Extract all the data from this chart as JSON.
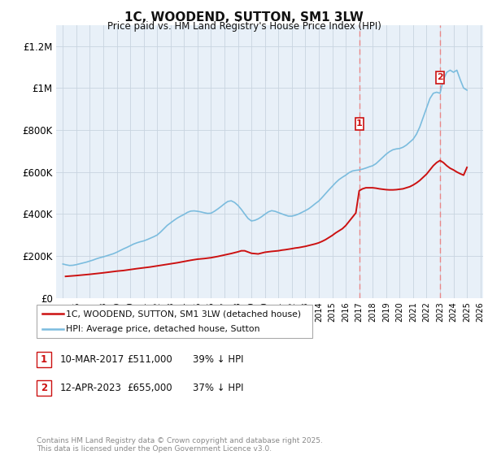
{
  "title": "1C, WOODEND, SUTTON, SM1 3LW",
  "subtitle": "Price paid vs. HM Land Registry's House Price Index (HPI)",
  "legend_line1": "1C, WOODEND, SUTTON, SM1 3LW (detached house)",
  "legend_line2": "HPI: Average price, detached house, Sutton",
  "annotation1": {
    "num": "1",
    "date": "10-MAR-2017",
    "price": "£511,000",
    "pct": "39% ↓ HPI"
  },
  "annotation2": {
    "num": "2",
    "date": "12-APR-2023",
    "price": "£655,000",
    "pct": "37% ↓ HPI"
  },
  "footer": "Contains HM Land Registry data © Crown copyright and database right 2025.\nThis data is licensed under the Open Government Licence v3.0.",
  "hpi_x": [
    1995.0,
    1995.25,
    1995.5,
    1995.75,
    1996.0,
    1996.25,
    1996.5,
    1996.75,
    1997.0,
    1997.25,
    1997.5,
    1997.75,
    1998.0,
    1998.25,
    1998.5,
    1998.75,
    1999.0,
    1999.25,
    1999.5,
    1999.75,
    2000.0,
    2000.25,
    2000.5,
    2000.75,
    2001.0,
    2001.25,
    2001.5,
    2001.75,
    2002.0,
    2002.25,
    2002.5,
    2002.75,
    2003.0,
    2003.25,
    2003.5,
    2003.75,
    2004.0,
    2004.25,
    2004.5,
    2004.75,
    2005.0,
    2005.25,
    2005.5,
    2005.75,
    2006.0,
    2006.25,
    2006.5,
    2006.75,
    2007.0,
    2007.25,
    2007.5,
    2007.75,
    2008.0,
    2008.25,
    2008.5,
    2008.75,
    2009.0,
    2009.25,
    2009.5,
    2009.75,
    2010.0,
    2010.25,
    2010.5,
    2010.75,
    2011.0,
    2011.25,
    2011.5,
    2011.75,
    2012.0,
    2012.25,
    2012.5,
    2012.75,
    2013.0,
    2013.25,
    2013.5,
    2013.75,
    2014.0,
    2014.25,
    2014.5,
    2014.75,
    2015.0,
    2015.25,
    2015.5,
    2015.75,
    2016.0,
    2016.25,
    2016.5,
    2016.75,
    2017.0,
    2017.25,
    2017.5,
    2017.75,
    2018.0,
    2018.25,
    2018.5,
    2018.75,
    2019.0,
    2019.25,
    2019.5,
    2019.75,
    2020.0,
    2020.25,
    2020.5,
    2020.75,
    2021.0,
    2021.25,
    2021.5,
    2021.75,
    2022.0,
    2022.25,
    2022.5,
    2022.75,
    2023.0,
    2023.25,
    2023.5,
    2023.75,
    2024.0,
    2024.25,
    2024.5,
    2024.75,
    2025.0
  ],
  "hpi_y": [
    162000,
    158000,
    155000,
    156000,
    159000,
    163000,
    167000,
    171000,
    176000,
    181000,
    187000,
    192000,
    196000,
    201000,
    206000,
    211000,
    218000,
    226000,
    234000,
    241000,
    249000,
    257000,
    263000,
    268000,
    272000,
    278000,
    285000,
    292000,
    300000,
    314000,
    330000,
    346000,
    358000,
    370000,
    381000,
    390000,
    398000,
    408000,
    414000,
    415000,
    413000,
    410000,
    406000,
    403000,
    404000,
    413000,
    424000,
    436000,
    449000,
    460000,
    463000,
    455000,
    441000,
    422000,
    400000,
    379000,
    367000,
    370000,
    377000,
    387000,
    399000,
    410000,
    416000,
    413000,
    407000,
    401000,
    395000,
    390000,
    390000,
    394000,
    400000,
    408000,
    416000,
    425000,
    437000,
    450000,
    462000,
    479000,
    497000,
    515000,
    532000,
    549000,
    564000,
    575000,
    585000,
    597000,
    605000,
    608000,
    610000,
    614000,
    619000,
    625000,
    630000,
    640000,
    655000,
    670000,
    685000,
    697000,
    706000,
    710000,
    712000,
    718000,
    728000,
    742000,
    756000,
    780000,
    815000,
    860000,
    905000,
    950000,
    975000,
    980000,
    975000,
    1040000,
    1075000,
    1085000,
    1075000,
    1085000,
    1040000,
    1000000,
    990000
  ],
  "prop_x": [
    1995.2,
    1996.0,
    1997.0,
    1998.0,
    1999.0,
    1999.5,
    2000.5,
    2001.5,
    2002.5,
    2003.0,
    2003.5,
    2004.0,
    2004.5,
    2005.0,
    2005.5,
    2006.0,
    2006.5,
    2007.0,
    2007.5,
    2008.0,
    2008.25,
    2008.5,
    2009.0,
    2009.5,
    2010.0,
    2010.5,
    2011.0,
    2011.25,
    2011.5,
    2012.0,
    2012.25,
    2012.5,
    2012.75,
    2013.0,
    2013.25,
    2013.5,
    2013.75,
    2014.0,
    2014.25,
    2014.5,
    2014.75,
    2015.0,
    2015.25,
    2015.5,
    2015.75,
    2016.0,
    2016.25,
    2016.5,
    2016.75,
    2017.0,
    2017.25,
    2017.5,
    2017.75,
    2018.0,
    2018.25,
    2018.5,
    2018.75,
    2019.0,
    2019.25,
    2019.5,
    2019.75,
    2020.0,
    2020.25,
    2020.5,
    2020.75,
    2021.0,
    2021.25,
    2021.5,
    2021.75,
    2022.0,
    2022.25,
    2022.5,
    2022.75,
    2023.0,
    2023.25,
    2023.5,
    2023.75,
    2024.0,
    2024.25,
    2024.5,
    2024.75,
    2025.0
  ],
  "prop_y": [
    103000,
    107000,
    113000,
    120000,
    128000,
    131000,
    140000,
    148000,
    158000,
    163000,
    168000,
    174000,
    180000,
    185000,
    188000,
    192000,
    198000,
    205000,
    212000,
    220000,
    225000,
    225000,
    213000,
    210000,
    218000,
    222000,
    225000,
    228000,
    230000,
    235000,
    238000,
    240000,
    243000,
    246000,
    250000,
    254000,
    258000,
    263000,
    270000,
    278000,
    288000,
    298000,
    310000,
    320000,
    330000,
    345000,
    365000,
    385000,
    405000,
    511000,
    520000,
    525000,
    525000,
    525000,
    523000,
    520000,
    518000,
    516000,
    515000,
    515000,
    516000,
    518000,
    520000,
    525000,
    530000,
    538000,
    548000,
    560000,
    575000,
    590000,
    610000,
    630000,
    645000,
    655000,
    645000,
    630000,
    618000,
    610000,
    600000,
    592000,
    585000,
    622000
  ],
  "marker1_x": 2017.0,
  "marker1_y": 830000,
  "marker2_x": 2023.0,
  "marker2_y": 1050000,
  "hpi_color": "#7bbcde",
  "property_color": "#cc1111",
  "dashed_color": "#e88888",
  "plot_bg_color": "#e8f0f8",
  "grid_color": "#c8d4e0",
  "ylim": [
    0,
    1300000
  ],
  "xlim": [
    1994.5,
    2026.2
  ],
  "yticks": [
    0,
    200000,
    400000,
    600000,
    800000,
    1000000,
    1200000
  ],
  "ytick_labels": [
    "£0",
    "£200K",
    "£400K",
    "£600K",
    "£800K",
    "£1M",
    "£1.2M"
  ],
  "xticks": [
    1995,
    1996,
    1997,
    1998,
    1999,
    2000,
    2001,
    2002,
    2003,
    2004,
    2005,
    2006,
    2007,
    2008,
    2009,
    2010,
    2011,
    2012,
    2013,
    2014,
    2015,
    2016,
    2017,
    2018,
    2019,
    2020,
    2021,
    2022,
    2023,
    2024,
    2025,
    2026
  ]
}
